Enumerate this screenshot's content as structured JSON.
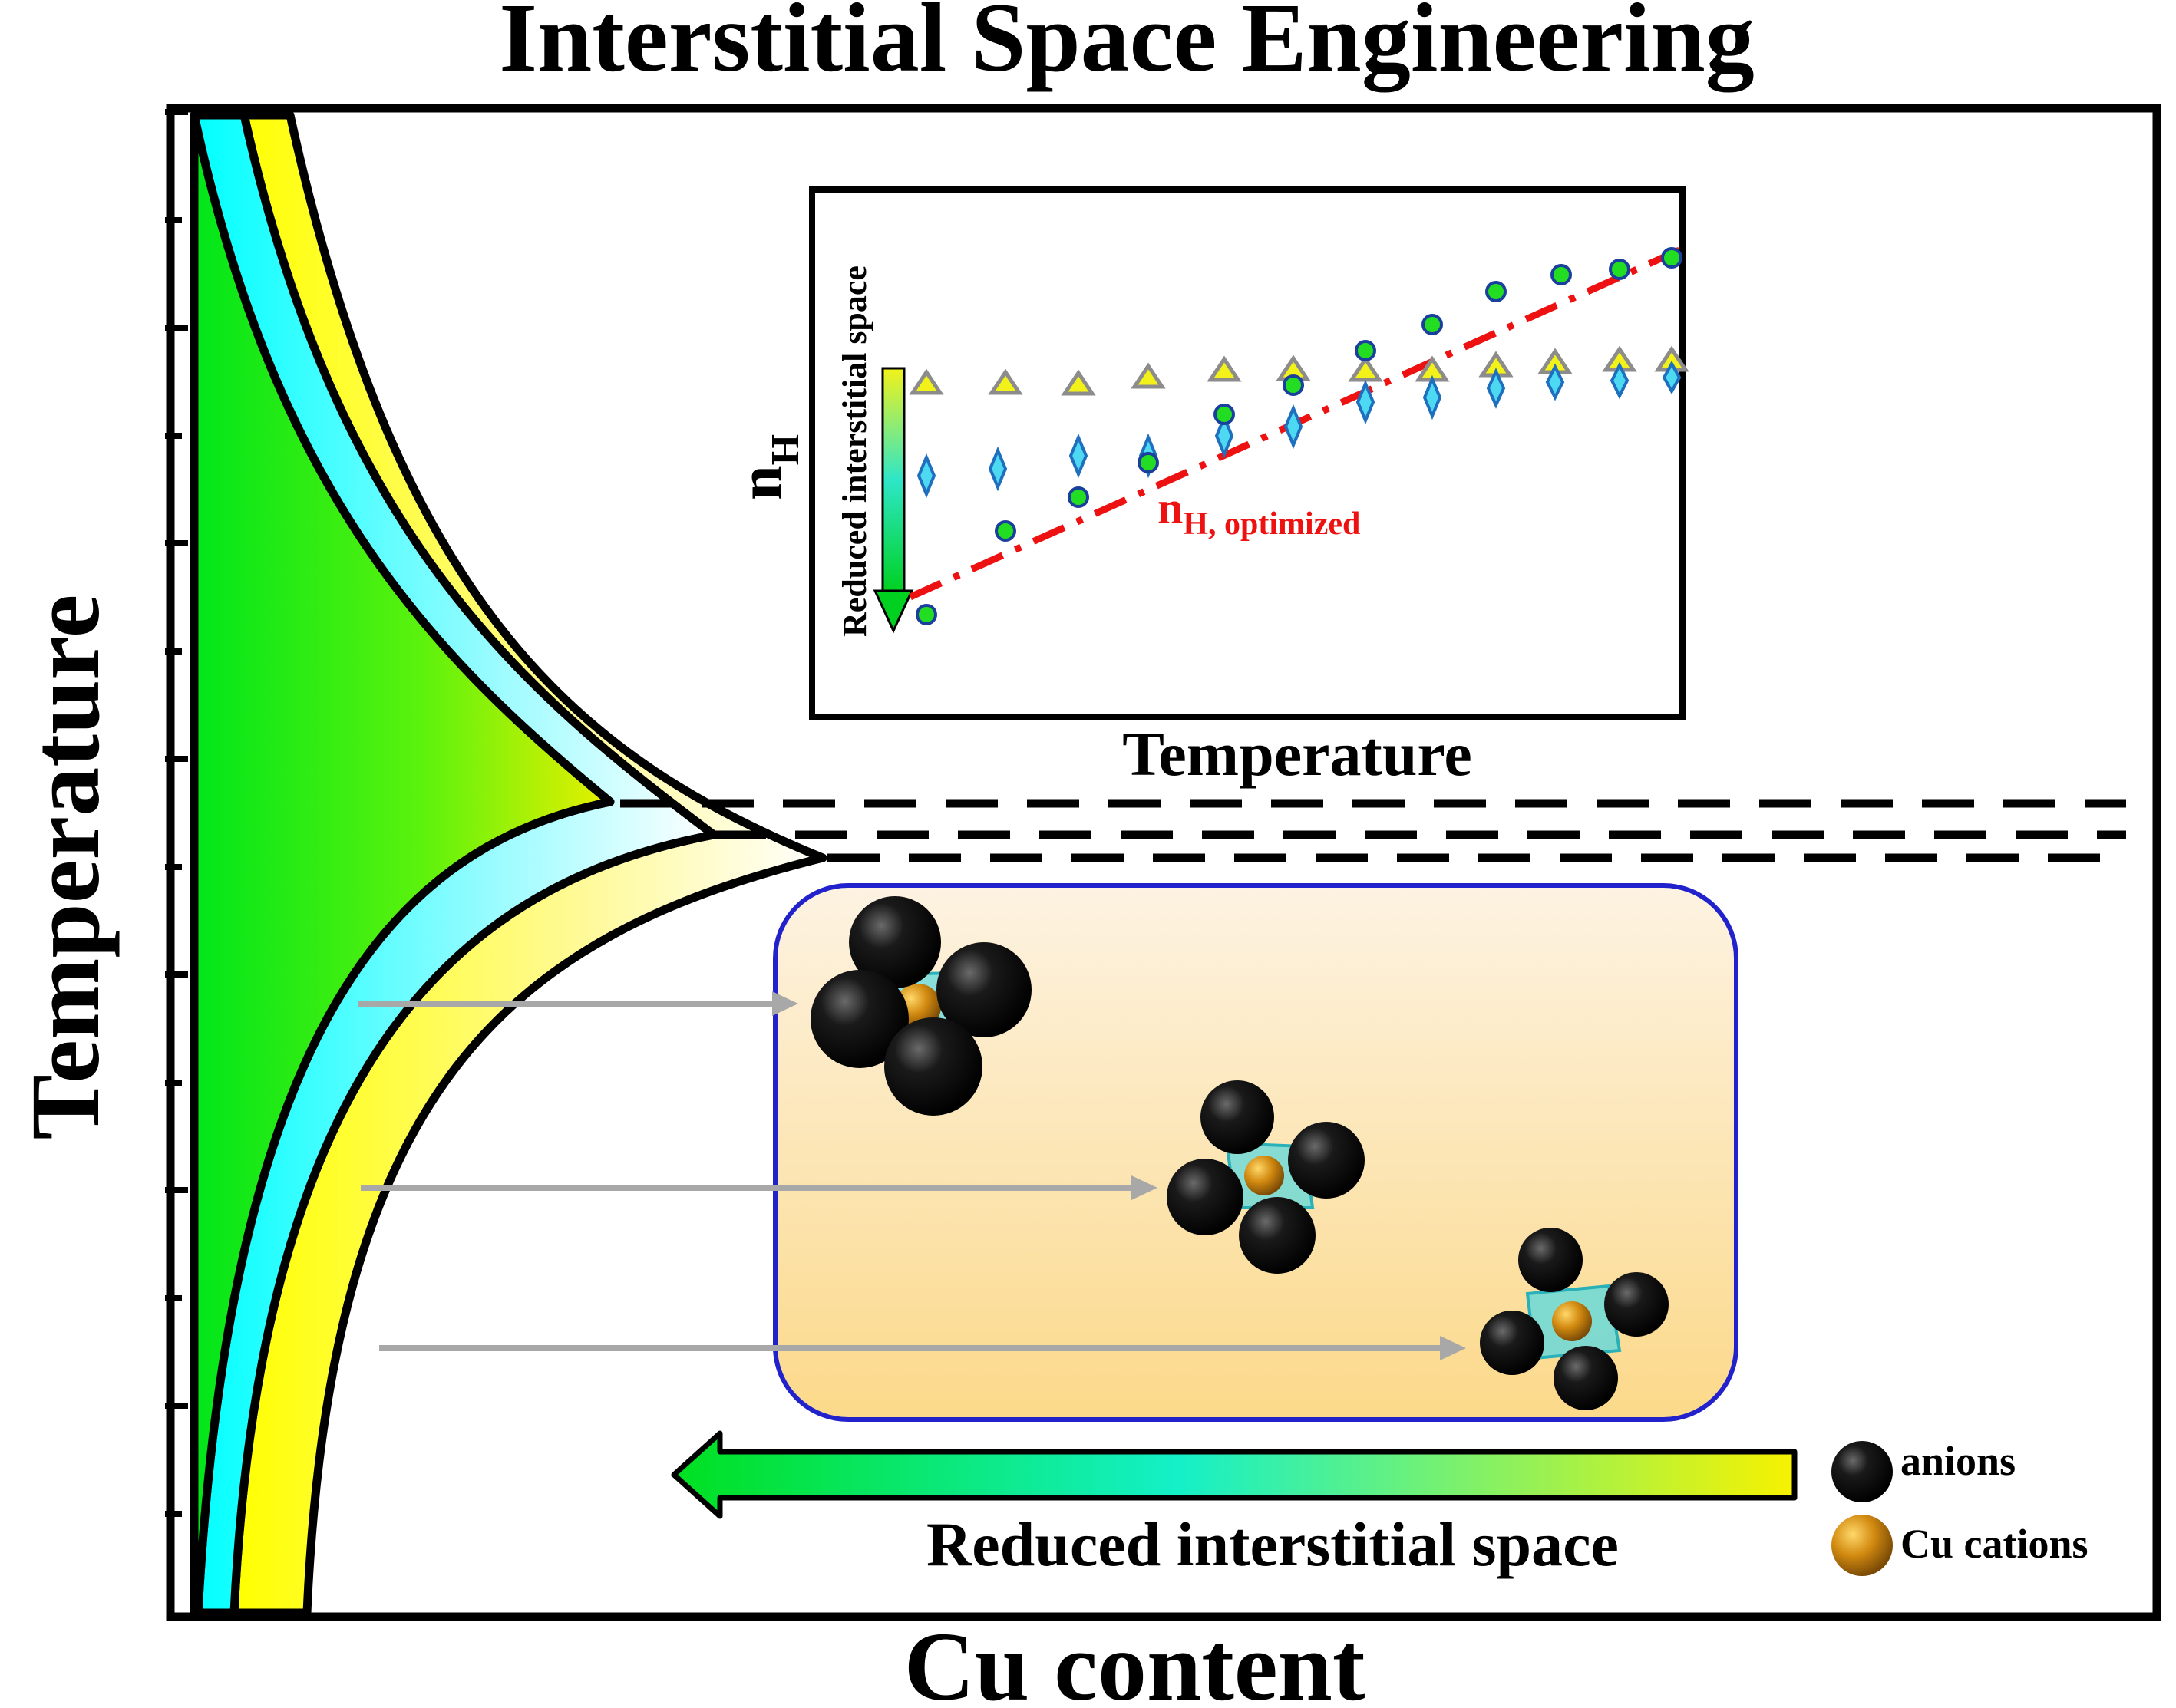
{
  "title": "Interstitial Space Engineering",
  "main_axes": {
    "x_label": "Cu content",
    "y_label": "Temperature"
  },
  "inset": {
    "y_label_main": "n",
    "y_label_sub": "H",
    "x_label": "Temperature",
    "arrow_label": "Reduced interstitial space",
    "fit_label_main": "n",
    "fit_label_sub": "H, optimized",
    "series_markers": [
      "triangle",
      "diamond",
      "circle"
    ],
    "colors": {
      "triangle_fill": "#f2f21a",
      "triangle_stroke": "#8c8c8c",
      "diamond_fill": "#4dd9f2",
      "diamond_stroke": "#1f6fbf",
      "circle_fill": "#22dd22",
      "circle_stroke": "#1a3f9c",
      "fit_line": "#ee1111"
    }
  },
  "phase_regions": [
    {
      "color": "#00ee22"
    },
    {
      "color": "#11ffff"
    },
    {
      "color": "#ffff22"
    }
  ],
  "structure_panel": {
    "arrow_label": "Reduced interstitial space",
    "background_top": "#fdf1dd",
    "background_bottom": "#fcd98c",
    "border": "#2222cc"
  },
  "legend": [
    {
      "icon": "black-sphere",
      "label": "anions"
    },
    {
      "icon": "gold-sphere",
      "label": "Cu cations"
    }
  ]
}
